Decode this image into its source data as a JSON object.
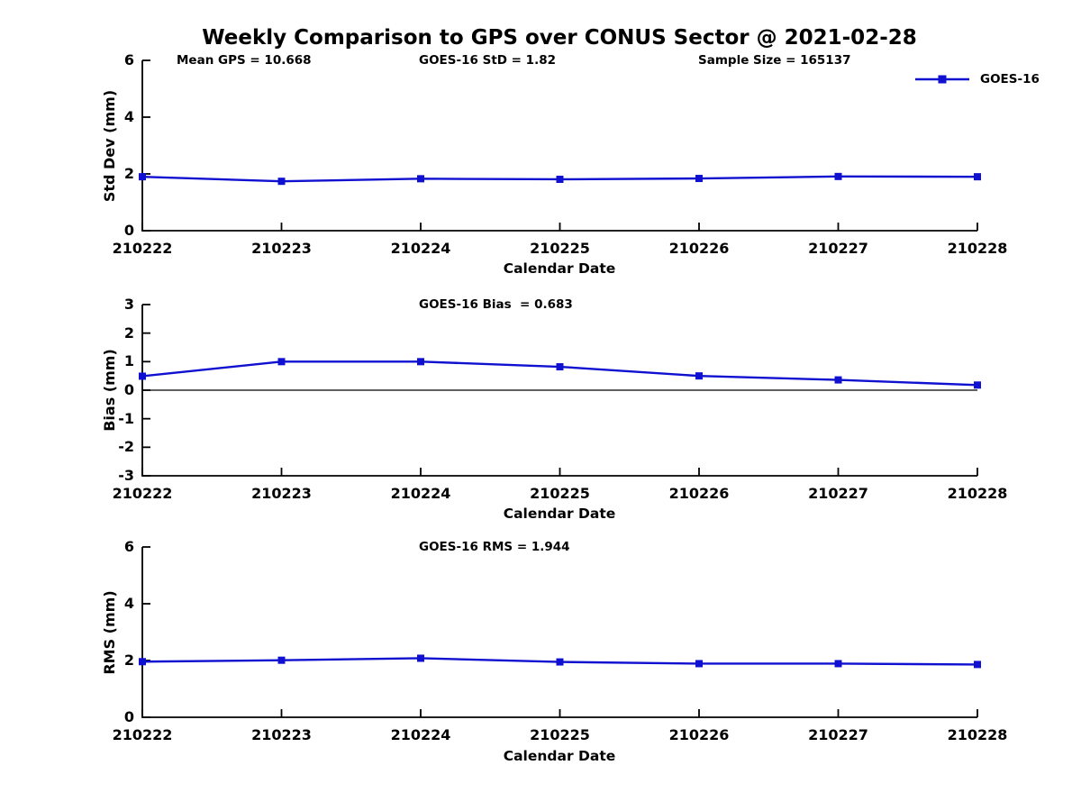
{
  "figure": {
    "title": "Weekly Comparison to GPS over CONUS Sector @ 2021-02-28",
    "background": "#ffffff"
  },
  "colors": {
    "series": "#0f10d0",
    "axis": "#000000",
    "text": "#000000"
  },
  "legend": {
    "label": "GOES-16",
    "marker": "filled-square",
    "position": "top-right-of-first-subplot"
  },
  "chart_data": [
    {
      "type": "line",
      "series_name": "GOES-16",
      "ylabel": "Std Dev (mm)",
      "xlabel": "Calendar Date",
      "ylim": [
        0,
        6
      ],
      "yticks": [
        0,
        2,
        4,
        6
      ],
      "categories": [
        "210222",
        "210223",
        "210224",
        "210225",
        "210226",
        "210227",
        "210228"
      ],
      "values": [
        1.9,
        1.74,
        1.83,
        1.81,
        1.84,
        1.91,
        1.9
      ],
      "annotations": [
        "Mean GPS = 10.668",
        "GOES-16 StD = 1.82",
        "Sample Size = 165137"
      ],
      "grid": false,
      "legend_visible": true,
      "zero_line": false
    },
    {
      "type": "line",
      "series_name": "GOES-16",
      "ylabel": "Bias (mm)",
      "xlabel": "Calendar Date",
      "ylim": [
        -3,
        3
      ],
      "yticks": [
        -3,
        -2,
        -1,
        0,
        1,
        2,
        3
      ],
      "categories": [
        "210222",
        "210223",
        "210224",
        "210225",
        "210226",
        "210227",
        "210228"
      ],
      "values": [
        0.49,
        1.0,
        1.0,
        0.82,
        0.5,
        0.36,
        0.18
      ],
      "annotations": [
        "GOES-16 Bias  = 0.683"
      ],
      "grid": false,
      "legend_visible": false,
      "zero_line": true
    },
    {
      "type": "line",
      "series_name": "GOES-16",
      "ylabel": "RMS (mm)",
      "xlabel": "Calendar Date",
      "ylim": [
        0,
        6
      ],
      "yticks": [
        0,
        2,
        4,
        6
      ],
      "categories": [
        "210222",
        "210223",
        "210224",
        "210225",
        "210226",
        "210227",
        "210228"
      ],
      "values": [
        1.96,
        2.01,
        2.08,
        1.95,
        1.89,
        1.89,
        1.86
      ],
      "annotations": [
        "GOES-16 RMS = 1.944"
      ],
      "grid": false,
      "legend_visible": false,
      "zero_line": false
    }
  ]
}
